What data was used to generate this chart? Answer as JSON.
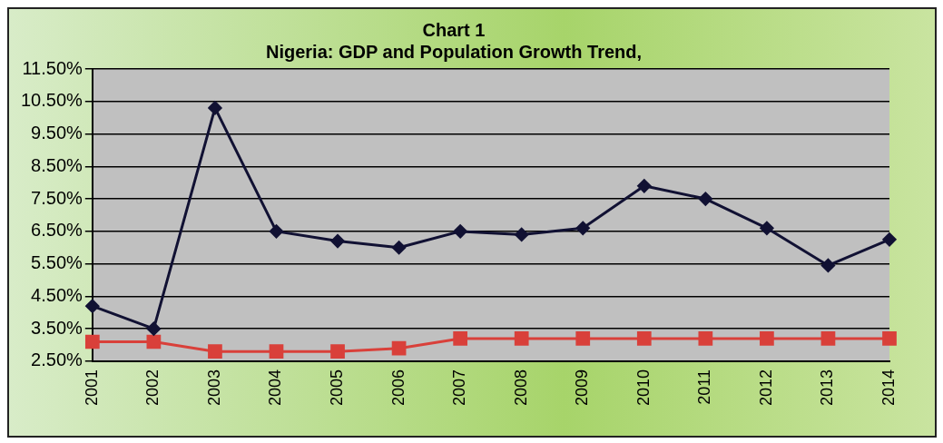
{
  "chart_data": {
    "type": "line",
    "title": "Chart 1",
    "subtitle": "Nigeria: GDP and Population Growth Trend,",
    "categories": [
      "2001",
      "2002",
      "2003",
      "2004",
      "2005",
      "2006",
      "2007",
      "2008",
      "2009",
      "2010",
      "2011",
      "2012",
      "2013",
      "2014"
    ],
    "series": [
      {
        "color": "#111133",
        "marker": "diamond",
        "values": [
          4.2,
          3.5,
          10.3,
          6.5,
          6.2,
          6.0,
          6.5,
          6.4,
          6.6,
          7.9,
          7.5,
          6.6,
          5.45,
          6.25
        ]
      },
      {
        "color": "#d9403a",
        "marker": "square",
        "values": [
          3.1,
          3.1,
          2.8,
          2.8,
          2.8,
          2.9,
          3.2,
          3.2,
          3.2,
          3.2,
          3.2,
          3.2,
          3.2,
          3.2
        ]
      }
    ],
    "ylim": [
      2.5,
      11.5
    ],
    "yticks": [
      {
        "value": 2.5,
        "label": "2.50%"
      },
      {
        "value": 3.5,
        "label": "3.50%"
      },
      {
        "value": 4.5,
        "label": "4.50%"
      },
      {
        "value": 5.5,
        "label": "5.50%"
      },
      {
        "value": 6.5,
        "label": "6.50%"
      },
      {
        "value": 7.5,
        "label": "7.50%"
      },
      {
        "value": 8.5,
        "label": "8.50%"
      },
      {
        "value": 9.5,
        "label": "9.50%"
      },
      {
        "value": 10.5,
        "label": "10.50%"
      },
      {
        "value": 11.5,
        "label": "11.50%"
      }
    ],
    "grid": "y",
    "legend": false,
    "line_style": "solid"
  }
}
